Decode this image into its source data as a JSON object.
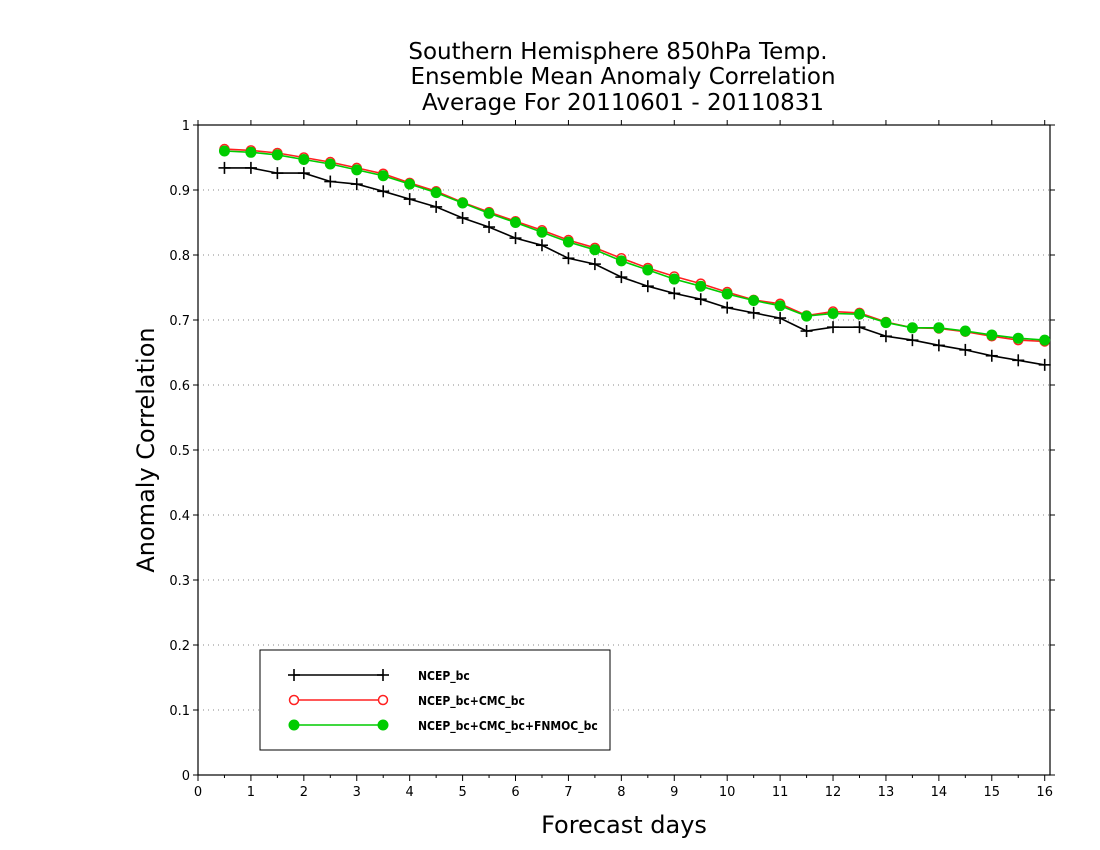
{
  "chart_data": {
    "type": "line",
    "title": [
      "Southern Hemisphere 850hPa Temp.",
      "Ensemble Mean Anomaly Correlation",
      "Average For 20110601 - 20110831"
    ],
    "xlabel": "Forecast days",
    "ylabel": "Anomaly Correlation",
    "xlim": [
      0,
      16.1
    ],
    "ylim": [
      0,
      1
    ],
    "xticks": [
      0,
      1,
      2,
      3,
      4,
      5,
      6,
      7,
      8,
      9,
      10,
      11,
      12,
      13,
      14,
      15,
      16
    ],
    "yticks": [
      0,
      0.1,
      0.2,
      0.3,
      0.4,
      0.5,
      0.6,
      0.7,
      0.8,
      0.9,
      1
    ],
    "ytick_labels": [
      "0",
      "0.1",
      "0.2",
      "0.3",
      "0.4",
      "0.5",
      "0.6",
      "0.7",
      "0.8",
      "0.9",
      "1"
    ],
    "grid": "horizontal dotted",
    "legend_position": "bottom-left",
    "x": [
      0.5,
      1,
      1.5,
      2,
      2.5,
      3,
      3.5,
      4,
      4.5,
      5,
      5.5,
      6,
      6.5,
      7,
      7.5,
      8,
      8.5,
      9,
      9.5,
      10,
      10.5,
      11,
      11.5,
      12,
      12.5,
      13,
      13.5,
      14,
      14.5,
      15,
      15.5,
      16
    ],
    "series": [
      {
        "name": "NCEP_bc",
        "color": "#000000",
        "marker": "plus",
        "values": [
          0.934,
          0.934,
          0.926,
          0.926,
          0.913,
          0.909,
          0.898,
          0.886,
          0.874,
          0.857,
          0.843,
          0.826,
          0.815,
          0.795,
          0.786,
          0.766,
          0.752,
          0.741,
          0.732,
          0.719,
          0.711,
          0.703,
          0.683,
          0.689,
          0.689,
          0.675,
          0.669,
          0.661,
          0.654,
          0.645,
          0.638,
          0.631
        ]
      },
      {
        "name": "NCEP_bc+CMC_bc",
        "color": "#ff2020",
        "marker": "open-circle",
        "values": [
          0.963,
          0.961,
          0.957,
          0.95,
          0.943,
          0.934,
          0.925,
          0.911,
          0.898,
          0.881,
          0.866,
          0.852,
          0.838,
          0.823,
          0.811,
          0.795,
          0.78,
          0.767,
          0.756,
          0.743,
          0.731,
          0.725,
          0.707,
          0.713,
          0.711,
          0.697,
          0.688,
          0.687,
          0.682,
          0.675,
          0.669,
          0.667
        ]
      },
      {
        "name": "NCEP_bc+CMC_bc+FNMOC_bc",
        "color": "#00cc00",
        "marker": "filled-circle",
        "values": [
          0.96,
          0.958,
          0.954,
          0.947,
          0.94,
          0.931,
          0.922,
          0.909,
          0.896,
          0.88,
          0.864,
          0.85,
          0.835,
          0.82,
          0.808,
          0.791,
          0.777,
          0.763,
          0.752,
          0.74,
          0.73,
          0.722,
          0.706,
          0.71,
          0.709,
          0.696,
          0.688,
          0.688,
          0.683,
          0.677,
          0.672,
          0.669
        ]
      }
    ]
  }
}
